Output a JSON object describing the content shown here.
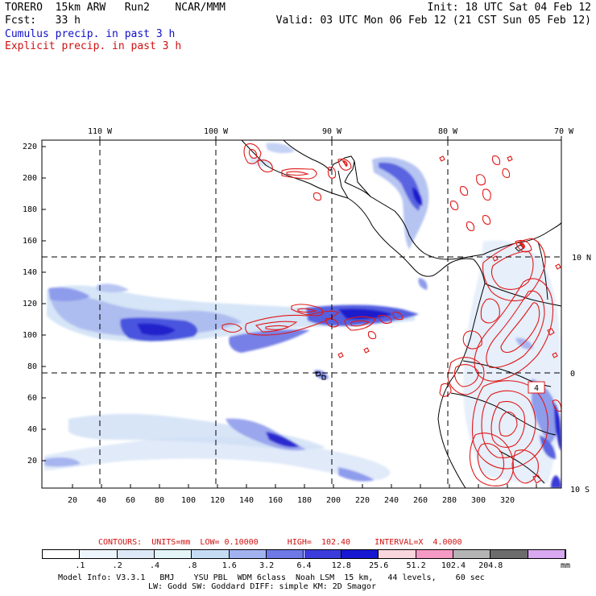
{
  "header": {
    "line1_left": "TORERO  15km ARW   Run2    NCAR/MMM",
    "line1_right": "Init: 18 UTC Sat 04 Feb 12",
    "line2_left": "Fcst:   33 h",
    "line2_right": "Valid: 03 UTC Mon 06 Feb 12 (21 CST Sun 05 Feb 12)",
    "line3": "Cumulus precip. in past 3 h",
    "line4": "Explicit precip. in past 3 h"
  },
  "colors": {
    "cumulus": "#1010c8",
    "explicit": "#d01010",
    "contour": "#e01818",
    "coast": "#000000"
  },
  "map": {
    "top_axis": [
      "110 W",
      "100 W",
      "90 W",
      "80 W",
      "70 W"
    ],
    "right_axis": [
      "10 N",
      "0",
      "10 S"
    ],
    "left_axis": [
      "220",
      "200",
      "180",
      "160",
      "140",
      "120",
      "100",
      "80",
      "60",
      "40",
      "20"
    ],
    "bottom_axis": [
      "20",
      "40",
      "60",
      "80",
      "100",
      "120",
      "140",
      "160",
      "180",
      "200",
      "220",
      "240",
      "260",
      "280",
      "300",
      "320"
    ],
    "contour_label": "4"
  },
  "footer": {
    "contours_line": "CONTOURS:  UNITS=mm  LOW= 0.10000      HIGH=  102.40     INTERVAL=X  4.0000",
    "scale_values": [
      ".1",
      ".2",
      ".4",
      ".8",
      "1.6",
      "3.2",
      "6.4",
      "12.8",
      "25.6",
      "51.2",
      "102.4",
      "204.8"
    ],
    "scale_units": "mm",
    "scale_colors": [
      "#ffffff",
      "#eef4fb",
      "#dde9f7",
      "#e4f5f7",
      "#c6dcf5",
      "#a2b2ef",
      "#6e78e6",
      "#3c3cdc",
      "#1818d2",
      "#f8d6dc",
      "#f49ac4",
      "#b4b4b4",
      "#6c6c6c",
      "#d8a8f0"
    ],
    "model_info_1": "Model Info: V3.3.1   BMJ    YSU PBL  WDM 6class  Noah LSM  15 km,   44 levels,    60 sec",
    "model_info_2": "LW: Godd SW: Goddard DIFF: simple KM: 2D Smagor"
  }
}
